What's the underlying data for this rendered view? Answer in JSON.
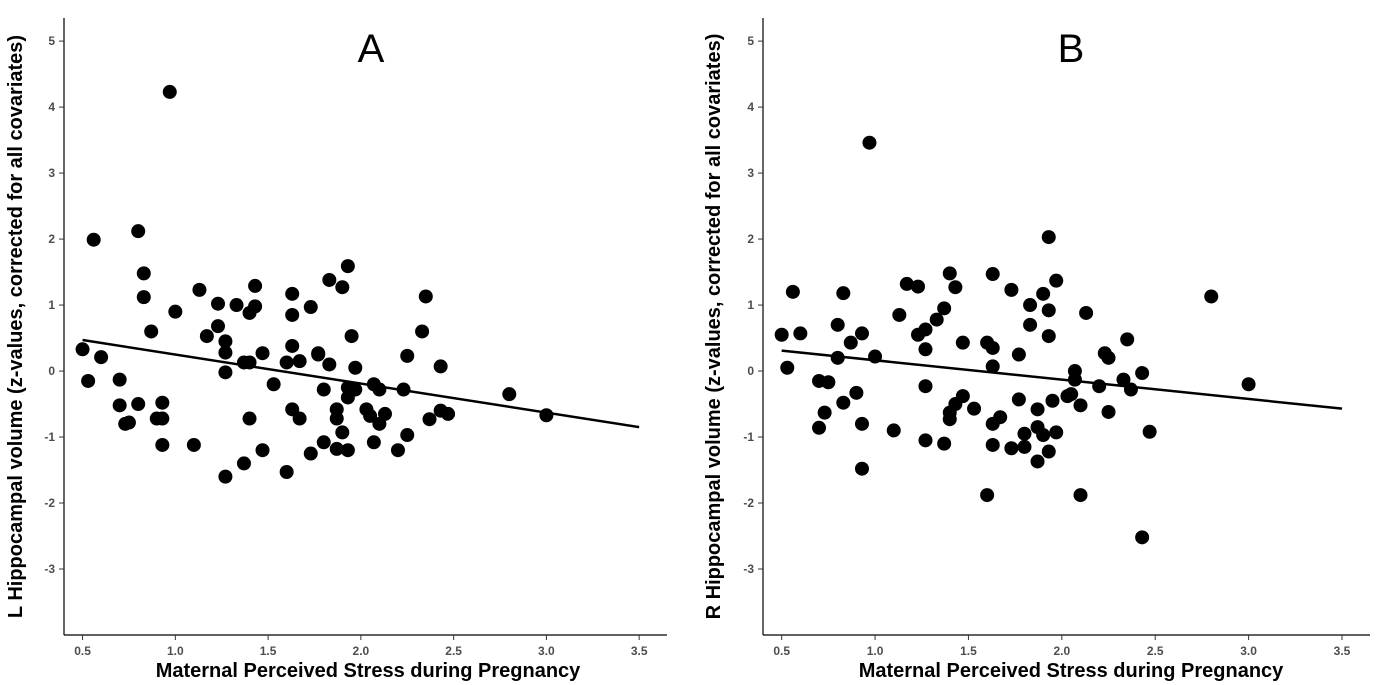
{
  "chart_data": [
    {
      "type": "scatter",
      "title": "A",
      "xlabel": "Maternal Perceived Stress during Pregnancy",
      "ylabel": "L Hippocampal volume (z-values, corrected for all covariates)",
      "xticks": [
        "0.5",
        "1.0",
        "1.5",
        "2.0",
        "2.5",
        "3.0",
        "3.5"
      ],
      "yticks": [
        "-3",
        "-2",
        "-1",
        "0",
        "1",
        "2",
        "3",
        "4",
        "5"
      ],
      "xlim": [
        0.4,
        3.65
      ],
      "ylim": [
        -4.0,
        5.35
      ],
      "grid": false,
      "marker_color": "#000000",
      "fit_line": {
        "x": [
          0.5,
          3.5
        ],
        "y": [
          0.47,
          -0.85
        ]
      },
      "points": [
        {
          "x": 0.5,
          "y": 0.33
        },
        {
          "x": 0.53,
          "y": -0.15
        },
        {
          "x": 0.56,
          "y": 1.99
        },
        {
          "x": 0.6,
          "y": 0.21
        },
        {
          "x": 0.7,
          "y": -0.13
        },
        {
          "x": 0.7,
          "y": -0.52
        },
        {
          "x": 0.73,
          "y": -0.8
        },
        {
          "x": 0.75,
          "y": -0.78
        },
        {
          "x": 0.8,
          "y": 2.12
        },
        {
          "x": 0.8,
          "y": -0.5
        },
        {
          "x": 0.83,
          "y": 1.48
        },
        {
          "x": 0.83,
          "y": 1.12
        },
        {
          "x": 0.87,
          "y": 0.6
        },
        {
          "x": 0.9,
          "y": -0.72
        },
        {
          "x": 0.93,
          "y": -0.48
        },
        {
          "x": 0.93,
          "y": -0.72
        },
        {
          "x": 0.93,
          "y": -1.12
        },
        {
          "x": 0.97,
          "y": 4.23
        },
        {
          "x": 1.0,
          "y": 0.9
        },
        {
          "x": 1.1,
          "y": -1.12
        },
        {
          "x": 1.13,
          "y": 1.23
        },
        {
          "x": 1.17,
          "y": 0.53
        },
        {
          "x": 1.23,
          "y": 1.02
        },
        {
          "x": 1.23,
          "y": 0.68
        },
        {
          "x": 1.27,
          "y": 0.45
        },
        {
          "x": 1.27,
          "y": 0.28
        },
        {
          "x": 1.27,
          "y": -0.02
        },
        {
          "x": 1.27,
          "y": -1.6
        },
        {
          "x": 1.33,
          "y": 1.0
        },
        {
          "x": 1.37,
          "y": 0.13
        },
        {
          "x": 1.37,
          "y": -1.4
        },
        {
          "x": 1.4,
          "y": 0.88
        },
        {
          "x": 1.4,
          "y": 0.13
        },
        {
          "x": 1.4,
          "y": -0.72
        },
        {
          "x": 1.43,
          "y": 1.29
        },
        {
          "x": 1.43,
          "y": 0.98
        },
        {
          "x": 1.47,
          "y": 0.27
        },
        {
          "x": 1.47,
          "y": -1.2
        },
        {
          "x": 1.53,
          "y": -0.2
        },
        {
          "x": 1.6,
          "y": 0.13
        },
        {
          "x": 1.6,
          "y": -1.53
        },
        {
          "x": 1.63,
          "y": 1.17
        },
        {
          "x": 1.63,
          "y": 0.85
        },
        {
          "x": 1.63,
          "y": 0.38
        },
        {
          "x": 1.63,
          "y": -0.58
        },
        {
          "x": 1.67,
          "y": 0.15
        },
        {
          "x": 1.67,
          "y": -0.72
        },
        {
          "x": 1.73,
          "y": 0.97
        },
        {
          "x": 1.73,
          "y": -1.25
        },
        {
          "x": 1.77,
          "y": 0.27
        },
        {
          "x": 1.77,
          "y": 0.25
        },
        {
          "x": 1.8,
          "y": -0.28
        },
        {
          "x": 1.8,
          "y": -1.08
        },
        {
          "x": 1.83,
          "y": 1.38
        },
        {
          "x": 1.83,
          "y": 0.1
        },
        {
          "x": 1.87,
          "y": -0.58
        },
        {
          "x": 1.87,
          "y": -0.72
        },
        {
          "x": 1.87,
          "y": -1.18
        },
        {
          "x": 1.9,
          "y": 1.27
        },
        {
          "x": 1.9,
          "y": -0.93
        },
        {
          "x": 1.93,
          "y": 1.59
        },
        {
          "x": 1.93,
          "y": -0.25
        },
        {
          "x": 1.93,
          "y": -0.4
        },
        {
          "x": 1.93,
          "y": -1.2
        },
        {
          "x": 1.95,
          "y": 0.53
        },
        {
          "x": 1.97,
          "y": 0.05
        },
        {
          "x": 1.97,
          "y": -0.28
        },
        {
          "x": 2.03,
          "y": -0.58
        },
        {
          "x": 2.05,
          "y": -0.68
        },
        {
          "x": 2.07,
          "y": -0.2
        },
        {
          "x": 2.07,
          "y": -1.08
        },
        {
          "x": 2.1,
          "y": -0.28
        },
        {
          "x": 2.1,
          "y": -0.8
        },
        {
          "x": 2.13,
          "y": -0.65
        },
        {
          "x": 2.2,
          "y": -1.2
        },
        {
          "x": 2.23,
          "y": -0.28
        },
        {
          "x": 2.25,
          "y": 0.23
        },
        {
          "x": 2.25,
          "y": -0.97
        },
        {
          "x": 2.33,
          "y": 0.6
        },
        {
          "x": 2.35,
          "y": 1.13
        },
        {
          "x": 2.37,
          "y": -0.73
        },
        {
          "x": 2.43,
          "y": 0.07
        },
        {
          "x": 2.43,
          "y": -0.6
        },
        {
          "x": 2.47,
          "y": -0.65
        },
        {
          "x": 2.8,
          "y": -0.35
        },
        {
          "x": 3.0,
          "y": -0.67
        }
      ]
    },
    {
      "type": "scatter",
      "title": "B",
      "xlabel": "Maternal Perceived Stress during Pregnancy",
      "ylabel": "R Hippocampal volume (z-values, corrected for all covariates)",
      "xticks": [
        "0.5",
        "1.0",
        "1.5",
        "2.0",
        "2.5",
        "3.0",
        "3.5"
      ],
      "yticks": [
        "-3",
        "-2",
        "-1",
        "0",
        "1",
        "2",
        "3",
        "4",
        "5"
      ],
      "xlim": [
        0.4,
        3.65
      ],
      "ylim": [
        -4.0,
        5.35
      ],
      "grid": false,
      "marker_color": "#000000",
      "fit_line": {
        "x": [
          0.5,
          3.5
        ],
        "y": [
          0.31,
          -0.57
        ]
      },
      "points": [
        {
          "x": 0.5,
          "y": 0.55
        },
        {
          "x": 0.53,
          "y": 0.05
        },
        {
          "x": 0.56,
          "y": 1.2
        },
        {
          "x": 0.6,
          "y": 0.57
        },
        {
          "x": 0.7,
          "y": -0.15
        },
        {
          "x": 0.7,
          "y": -0.86
        },
        {
          "x": 0.73,
          "y": -0.63
        },
        {
          "x": 0.75,
          "y": -0.17
        },
        {
          "x": 0.8,
          "y": 0.7
        },
        {
          "x": 0.8,
          "y": 0.2
        },
        {
          "x": 0.83,
          "y": 1.18
        },
        {
          "x": 0.83,
          "y": -0.48
        },
        {
          "x": 0.87,
          "y": 0.43
        },
        {
          "x": 0.9,
          "y": -0.33
        },
        {
          "x": 0.93,
          "y": 0.57
        },
        {
          "x": 0.93,
          "y": -0.8
        },
        {
          "x": 0.93,
          "y": -1.48
        },
        {
          "x": 0.97,
          "y": 3.46
        },
        {
          "x": 1.0,
          "y": 0.22
        },
        {
          "x": 1.1,
          "y": -0.9
        },
        {
          "x": 1.13,
          "y": 0.85
        },
        {
          "x": 1.17,
          "y": 1.32
        },
        {
          "x": 1.23,
          "y": 1.28
        },
        {
          "x": 1.23,
          "y": 0.55
        },
        {
          "x": 1.27,
          "y": 0.63
        },
        {
          "x": 1.27,
          "y": 0.33
        },
        {
          "x": 1.27,
          "y": -0.23
        },
        {
          "x": 1.27,
          "y": -1.05
        },
        {
          "x": 1.33,
          "y": 0.78
        },
        {
          "x": 1.37,
          "y": 0.95
        },
        {
          "x": 1.37,
          "y": -1.1
        },
        {
          "x": 1.4,
          "y": 1.48
        },
        {
          "x": 1.4,
          "y": -0.63
        },
        {
          "x": 1.4,
          "y": -0.73
        },
        {
          "x": 1.43,
          "y": 1.27
        },
        {
          "x": 1.43,
          "y": -0.5
        },
        {
          "x": 1.47,
          "y": 0.43
        },
        {
          "x": 1.47,
          "y": -0.38
        },
        {
          "x": 1.53,
          "y": -0.57
        },
        {
          "x": 1.6,
          "y": 0.43
        },
        {
          "x": 1.6,
          "y": -1.88
        },
        {
          "x": 1.63,
          "y": 1.47
        },
        {
          "x": 1.63,
          "y": 0.35
        },
        {
          "x": 1.63,
          "y": 0.07
        },
        {
          "x": 1.63,
          "y": -0.8
        },
        {
          "x": 1.63,
          "y": -1.12
        },
        {
          "x": 1.67,
          "y": -0.7
        },
        {
          "x": 1.73,
          "y": 1.23
        },
        {
          "x": 1.73,
          "y": -1.17
        },
        {
          "x": 1.77,
          "y": 0.25
        },
        {
          "x": 1.77,
          "y": -0.43
        },
        {
          "x": 1.8,
          "y": -0.95
        },
        {
          "x": 1.8,
          "y": -1.15
        },
        {
          "x": 1.83,
          "y": 1.0
        },
        {
          "x": 1.83,
          "y": 0.7
        },
        {
          "x": 1.87,
          "y": -0.58
        },
        {
          "x": 1.87,
          "y": -0.85
        },
        {
          "x": 1.87,
          "y": -1.37
        },
        {
          "x": 1.9,
          "y": 1.17
        },
        {
          "x": 1.9,
          "y": -0.97
        },
        {
          "x": 1.93,
          "y": 2.03
        },
        {
          "x": 1.93,
          "y": 0.92
        },
        {
          "x": 1.93,
          "y": 0.53
        },
        {
          "x": 1.93,
          "y": -1.22
        },
        {
          "x": 1.95,
          "y": -0.45
        },
        {
          "x": 1.97,
          "y": 1.37
        },
        {
          "x": 1.97,
          "y": -0.93
        },
        {
          "x": 2.03,
          "y": -0.38
        },
        {
          "x": 2.05,
          "y": -0.35
        },
        {
          "x": 2.07,
          "y": 0.0
        },
        {
          "x": 2.07,
          "y": -0.13
        },
        {
          "x": 2.1,
          "y": -0.52
        },
        {
          "x": 2.1,
          "y": -1.88
        },
        {
          "x": 2.13,
          "y": 0.88
        },
        {
          "x": 2.2,
          "y": -0.23
        },
        {
          "x": 2.23,
          "y": 0.27
        },
        {
          "x": 2.25,
          "y": 0.2
        },
        {
          "x": 2.25,
          "y": -0.62
        },
        {
          "x": 2.33,
          "y": -0.13
        },
        {
          "x": 2.35,
          "y": 0.48
        },
        {
          "x": 2.37,
          "y": -0.28
        },
        {
          "x": 2.43,
          "y": -0.03
        },
        {
          "x": 2.43,
          "y": -2.52
        },
        {
          "x": 2.47,
          "y": -0.92
        },
        {
          "x": 2.8,
          "y": 1.13
        },
        {
          "x": 3.0,
          "y": -0.2
        }
      ]
    }
  ]
}
